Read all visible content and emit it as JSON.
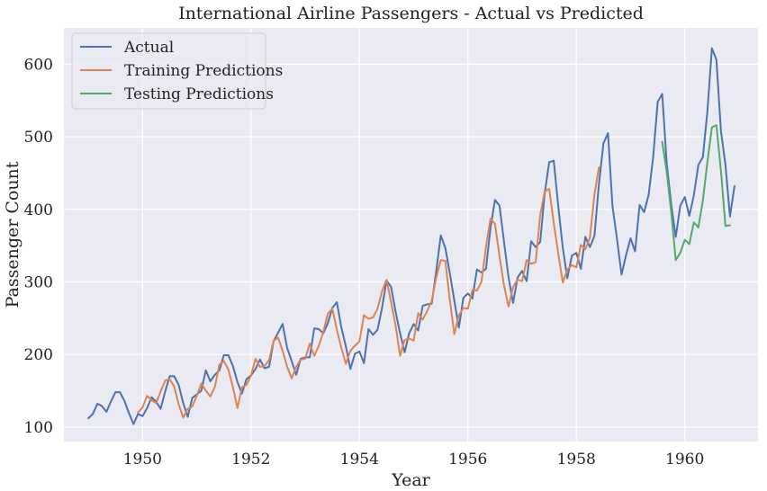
{
  "chart_data": {
    "type": "line",
    "title": "International Airline Passengers - Actual vs Predicted",
    "xlabel": "Year",
    "ylabel": "Passenger Count",
    "xlim": [
      1948.55,
      1961.35
    ],
    "ylim": [
      80,
      650
    ],
    "xticks": [
      1950,
      1952,
      1954,
      1956,
      1958,
      1960
    ],
    "yticks": [
      100,
      200,
      300,
      400,
      500,
      600
    ],
    "grid": true,
    "legend_position": "top-left",
    "colors": {
      "Actual": "#4c72b0",
      "Training Predictions": "#dd8452",
      "Testing Predictions": "#55a868",
      "background": "#eaeaf2"
    },
    "series": [
      {
        "name": "Actual",
        "start": 1949.0,
        "step": 0.0833333,
        "values": [
          112,
          118,
          132,
          129,
          121,
          135,
          148,
          148,
          136,
          119,
          104,
          118,
          115,
          126,
          141,
          135,
          125,
          149,
          170,
          170,
          158,
          133,
          114,
          140,
          145,
          150,
          178,
          163,
          172,
          178,
          199,
          199,
          184,
          162,
          146,
          166,
          171,
          180,
          193,
          181,
          183,
          218,
          230,
          242,
          209,
          191,
          172,
          194,
          196,
          196,
          236,
          235,
          229,
          243,
          264,
          272,
          237,
          211,
          180,
          201,
          204,
          188,
          235,
          227,
          234,
          264,
          302,
          293,
          259,
          229,
          203,
          229,
          242,
          233,
          267,
          269,
          270,
          315,
          364,
          347,
          312,
          274,
          237,
          278,
          284,
          277,
          317,
          313,
          318,
          374,
          413,
          405,
          355,
          306,
          271,
          306,
          315,
          301,
          356,
          348,
          355,
          422,
          465,
          467,
          404,
          347,
          305,
          336,
          340,
          318,
          362,
          348,
          363,
          435,
          491,
          505,
          404,
          359,
          310,
          337,
          360,
          342,
          406,
          396,
          420,
          472,
          548,
          559,
          463,
          407,
          362,
          405,
          417,
          391,
          419,
          461,
          472,
          535,
          622,
          606,
          508,
          461,
          390,
          432
        ]
      },
      {
        "name": "Training Predictions",
        "start": 1949.9167,
        "step": 0.0833333,
        "values": [
          120,
          127,
          143,
          137,
          133,
          149,
          164,
          166,
          156,
          131,
          113,
          125,
          128,
          143,
          160,
          150,
          142,
          155,
          186,
          191,
          179,
          155,
          126,
          155,
          158,
          171,
          194,
          183,
          184,
          192,
          219,
          223,
          205,
          183,
          167,
          183,
          193,
          194,
          215,
          198,
          212,
          231,
          256,
          263,
          234,
          209,
          187,
          205,
          212,
          218,
          254,
          249,
          251,
          263,
          287,
          303,
          272,
          240,
          198,
          220,
          222,
          219,
          257,
          248,
          260,
          274,
          306,
          330,
          329,
          275,
          228,
          254,
          264,
          263,
          289,
          288,
          300,
          348,
          387,
          380,
          335,
          295,
          266,
          293,
          303,
          301,
          330,
          325,
          327,
          392,
          425,
          428,
          381,
          339,
          299,
          317,
          323,
          320,
          351,
          345,
          361,
          420,
          458
        ]
      },
      {
        "name": "Testing Predictions",
        "start": 1959.5833,
        "step": 0.0833333,
        "values": [
          493,
          452,
          396,
          330,
          340,
          358,
          352,
          382,
          375,
          412,
          465,
          513,
          516,
          453,
          377,
          378
        ]
      }
    ]
  }
}
